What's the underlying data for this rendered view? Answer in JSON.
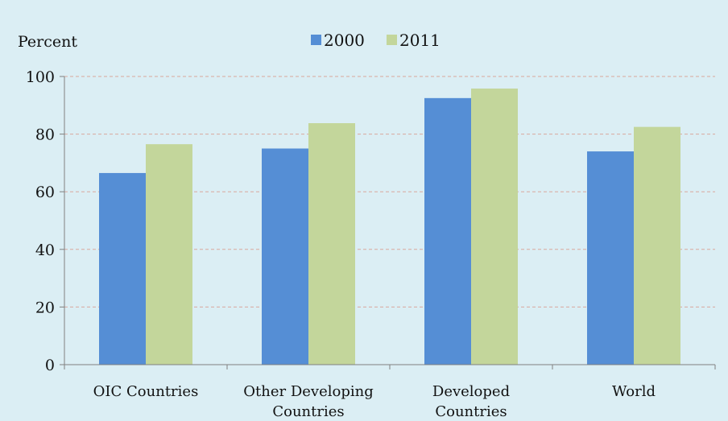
{
  "chart_data": {
    "type": "bar",
    "categories": [
      [
        "OIC Countries"
      ],
      [
        "Other Developing",
        "Countries"
      ],
      [
        "Developed",
        "Countries"
      ],
      [
        "World"
      ]
    ],
    "series": [
      {
        "name": "2000",
        "values": [
          66.5,
          75.0,
          92.5,
          74.0
        ],
        "color": "#558ed5"
      },
      {
        "name": "2011",
        "values": [
          76.5,
          83.8,
          95.8,
          82.5
        ],
        "color": "#c3d69b"
      }
    ],
    "title": "",
    "xlabel": "",
    "ylabel": "Percent",
    "ylim": [
      0,
      100
    ],
    "yticks": [
      0,
      20,
      40,
      60,
      80,
      100
    ],
    "grid": true,
    "legend": "top-center",
    "background": "#dbeef4"
  }
}
